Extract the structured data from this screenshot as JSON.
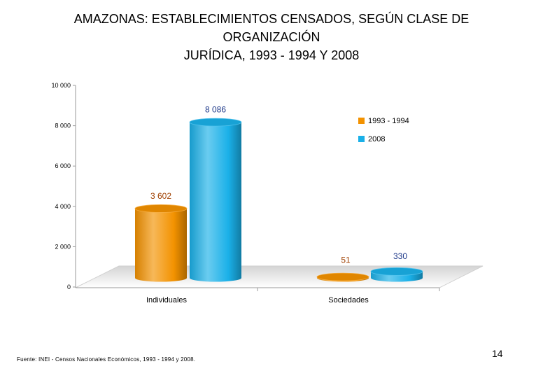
{
  "title": {
    "line1": "AMAZONAS: ESTABLECIMIENTOS CENSADOS, SEGÚN CLASE DE",
    "line2": "ORGANIZACIÓN",
    "line3": "JURÍDICA, 1993 - 1994 Y 2008"
  },
  "chart_data": {
    "type": "bar",
    "categories": [
      "Individuales",
      "Sociedades"
    ],
    "series": [
      {
        "name": "1993 - 1994",
        "values": [
          3602,
          51
        ],
        "labels": [
          "3 602",
          "51"
        ],
        "color": "#f39200",
        "label_color": "#a04000"
      },
      {
        "name": "2008",
        "values": [
          8086,
          330
        ],
        "labels": [
          "8 086",
          "330"
        ],
        "color": "#1ab0e8",
        "label_color": "#1f3a8a"
      }
    ],
    "yticks": [
      "0",
      "2 000",
      "4 000",
      "6 000",
      "8 000",
      "10 000"
    ],
    "ylim": [
      0,
      10000
    ],
    "legend_position": "right",
    "three_d": true
  },
  "footer": {
    "source": "Fuente: INEI - Censos Nacionales Económicos, 1993 - 1994 y 2008.",
    "page_number": "14"
  }
}
